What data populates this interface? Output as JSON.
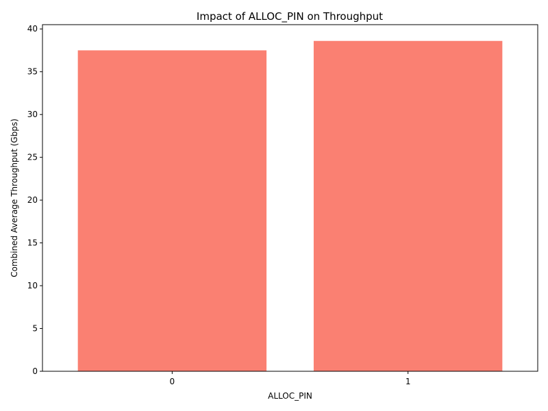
{
  "chart_data": {
    "type": "bar",
    "title": "Impact of ALLOC_PIN on Throughput",
    "xlabel": "ALLOC_PIN",
    "ylabel": "Combined Average Throughput (Gbps)",
    "categories": [
      "0",
      "1"
    ],
    "values": [
      37.5,
      38.6
    ],
    "ylim": [
      0,
      40.5
    ],
    "yticks": [
      0,
      5,
      10,
      15,
      20,
      25,
      30,
      35,
      40
    ],
    "bar_color": "#fa8072",
    "grid": false,
    "legend": "none"
  }
}
